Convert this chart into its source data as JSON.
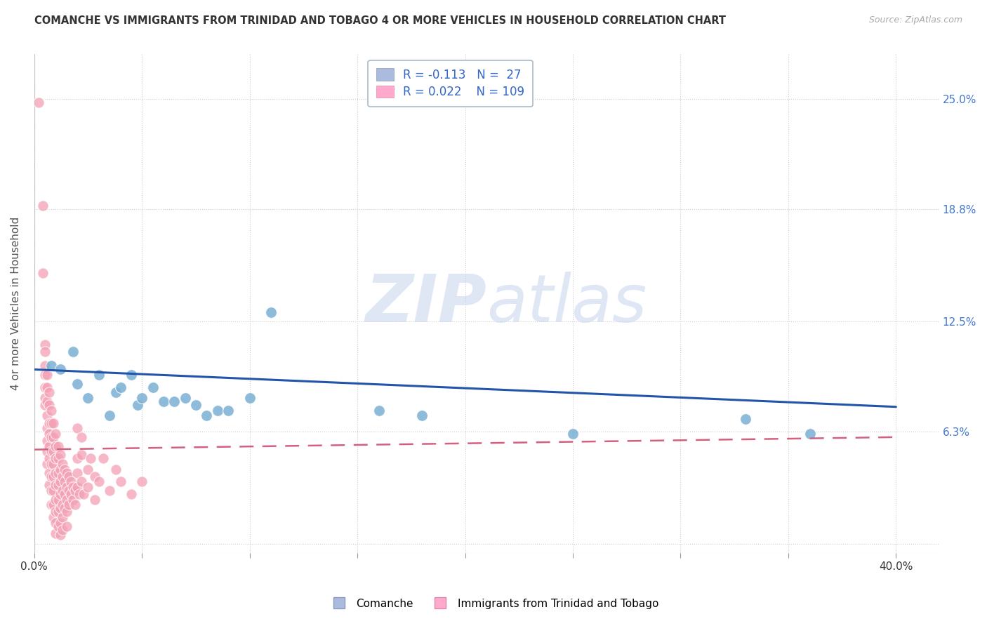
{
  "title": "COMANCHE VS IMMIGRANTS FROM TRINIDAD AND TOBAGO 4 OR MORE VEHICLES IN HOUSEHOLD CORRELATION CHART",
  "source": "Source: ZipAtlas.com",
  "ylabel": "4 or more Vehicles in Household",
  "ytick_labels": [
    "",
    "6.3%",
    "12.5%",
    "18.8%",
    "25.0%"
  ],
  "ytick_values": [
    0.0,
    0.063,
    0.125,
    0.188,
    0.25
  ],
  "xtick_values": [
    0.0,
    0.05,
    0.1,
    0.15,
    0.2,
    0.25,
    0.3,
    0.35,
    0.4
  ],
  "xlim": [
    0.0,
    0.42
  ],
  "ylim": [
    -0.005,
    0.275
  ],
  "blue_R": -0.113,
  "blue_N": 27,
  "pink_R": 0.022,
  "pink_N": 109,
  "legend_label_blue": "Comanche",
  "legend_label_pink": "Immigrants from Trinidad and Tobago",
  "watermark_zip": "ZIP",
  "watermark_atlas": "atlas",
  "blue_color": "#7bafd4",
  "pink_color": "#f4a0b5",
  "blue_line_color": "#2255aa",
  "pink_line_color": "#d46080",
  "blue_scatter": [
    [
      0.008,
      0.1
    ],
    [
      0.012,
      0.098
    ],
    [
      0.018,
      0.108
    ],
    [
      0.02,
      0.09
    ],
    [
      0.025,
      0.082
    ],
    [
      0.03,
      0.095
    ],
    [
      0.035,
      0.072
    ],
    [
      0.038,
      0.085
    ],
    [
      0.04,
      0.088
    ],
    [
      0.045,
      0.095
    ],
    [
      0.048,
      0.078
    ],
    [
      0.05,
      0.082
    ],
    [
      0.055,
      0.088
    ],
    [
      0.06,
      0.08
    ],
    [
      0.065,
      0.08
    ],
    [
      0.07,
      0.082
    ],
    [
      0.075,
      0.078
    ],
    [
      0.08,
      0.072
    ],
    [
      0.085,
      0.075
    ],
    [
      0.09,
      0.075
    ],
    [
      0.1,
      0.082
    ],
    [
      0.11,
      0.13
    ],
    [
      0.16,
      0.075
    ],
    [
      0.18,
      0.072
    ],
    [
      0.25,
      0.062
    ],
    [
      0.33,
      0.07
    ],
    [
      0.36,
      0.062
    ]
  ],
  "pink_scatter": [
    [
      0.002,
      0.248
    ],
    [
      0.004,
      0.19
    ],
    [
      0.004,
      0.152
    ],
    [
      0.005,
      0.112
    ],
    [
      0.005,
      0.108
    ],
    [
      0.005,
      0.1
    ],
    [
      0.005,
      0.095
    ],
    [
      0.005,
      0.088
    ],
    [
      0.005,
      0.082
    ],
    [
      0.005,
      0.078
    ],
    [
      0.006,
      0.095
    ],
    [
      0.006,
      0.088
    ],
    [
      0.006,
      0.08
    ],
    [
      0.006,
      0.072
    ],
    [
      0.006,
      0.065
    ],
    [
      0.006,
      0.058
    ],
    [
      0.006,
      0.052
    ],
    [
      0.006,
      0.045
    ],
    [
      0.007,
      0.085
    ],
    [
      0.007,
      0.078
    ],
    [
      0.007,
      0.068
    ],
    [
      0.007,
      0.062
    ],
    [
      0.007,
      0.055
    ],
    [
      0.007,
      0.048
    ],
    [
      0.007,
      0.04
    ],
    [
      0.007,
      0.033
    ],
    [
      0.008,
      0.075
    ],
    [
      0.008,
      0.068
    ],
    [
      0.008,
      0.06
    ],
    [
      0.008,
      0.052
    ],
    [
      0.008,
      0.045
    ],
    [
      0.008,
      0.038
    ],
    [
      0.008,
      0.03
    ],
    [
      0.008,
      0.022
    ],
    [
      0.009,
      0.068
    ],
    [
      0.009,
      0.06
    ],
    [
      0.009,
      0.052
    ],
    [
      0.009,
      0.045
    ],
    [
      0.009,
      0.038
    ],
    [
      0.009,
      0.03
    ],
    [
      0.009,
      0.022
    ],
    [
      0.009,
      0.015
    ],
    [
      0.01,
      0.062
    ],
    [
      0.01,
      0.055
    ],
    [
      0.01,
      0.048
    ],
    [
      0.01,
      0.04
    ],
    [
      0.01,
      0.033
    ],
    [
      0.01,
      0.025
    ],
    [
      0.01,
      0.018
    ],
    [
      0.01,
      0.012
    ],
    [
      0.01,
      0.006
    ],
    [
      0.011,
      0.055
    ],
    [
      0.011,
      0.048
    ],
    [
      0.011,
      0.04
    ],
    [
      0.011,
      0.033
    ],
    [
      0.011,
      0.025
    ],
    [
      0.011,
      0.018
    ],
    [
      0.011,
      0.01
    ],
    [
      0.012,
      0.05
    ],
    [
      0.012,
      0.042
    ],
    [
      0.012,
      0.035
    ],
    [
      0.012,
      0.028
    ],
    [
      0.012,
      0.02
    ],
    [
      0.012,
      0.012
    ],
    [
      0.012,
      0.005
    ],
    [
      0.013,
      0.045
    ],
    [
      0.013,
      0.038
    ],
    [
      0.013,
      0.03
    ],
    [
      0.013,
      0.022
    ],
    [
      0.013,
      0.015
    ],
    [
      0.013,
      0.008
    ],
    [
      0.014,
      0.042
    ],
    [
      0.014,
      0.035
    ],
    [
      0.014,
      0.028
    ],
    [
      0.014,
      0.02
    ],
    [
      0.015,
      0.04
    ],
    [
      0.015,
      0.032
    ],
    [
      0.015,
      0.025
    ],
    [
      0.015,
      0.018
    ],
    [
      0.015,
      0.01
    ],
    [
      0.016,
      0.038
    ],
    [
      0.016,
      0.03
    ],
    [
      0.016,
      0.022
    ],
    [
      0.017,
      0.035
    ],
    [
      0.017,
      0.028
    ],
    [
      0.018,
      0.032
    ],
    [
      0.018,
      0.025
    ],
    [
      0.019,
      0.03
    ],
    [
      0.019,
      0.022
    ],
    [
      0.02,
      0.065
    ],
    [
      0.02,
      0.048
    ],
    [
      0.02,
      0.04
    ],
    [
      0.02,
      0.032
    ],
    [
      0.021,
      0.028
    ],
    [
      0.022,
      0.06
    ],
    [
      0.022,
      0.05
    ],
    [
      0.022,
      0.035
    ],
    [
      0.023,
      0.028
    ],
    [
      0.025,
      0.042
    ],
    [
      0.025,
      0.032
    ],
    [
      0.026,
      0.048
    ],
    [
      0.028,
      0.038
    ],
    [
      0.028,
      0.025
    ],
    [
      0.03,
      0.035
    ],
    [
      0.032,
      0.048
    ],
    [
      0.035,
      0.03
    ],
    [
      0.038,
      0.042
    ],
    [
      0.04,
      0.035
    ],
    [
      0.045,
      0.028
    ],
    [
      0.05,
      0.035
    ]
  ],
  "blue_line_x": [
    0.0,
    0.4
  ],
  "blue_line_y": [
    0.098,
    0.077
  ],
  "pink_line_x": [
    0.0,
    0.4
  ],
  "pink_line_y": [
    0.053,
    0.06
  ]
}
